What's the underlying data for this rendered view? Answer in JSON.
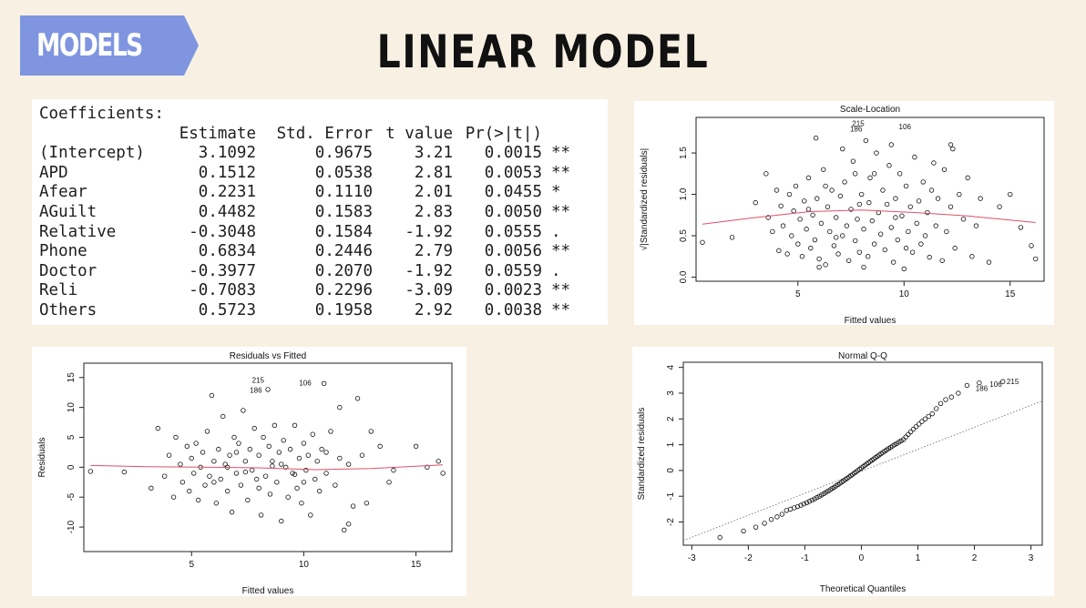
{
  "header": {
    "tag_label": "MODELS",
    "title": "LINEAR MODEL"
  },
  "coefficients": {
    "caption": "Coefficients:",
    "columns": [
      "",
      "Estimate",
      "Std. Error",
      "t value",
      "Pr(>|t|)",
      ""
    ],
    "rows": [
      [
        "(Intercept)",
        "3.1092",
        "0.9675",
        "3.21",
        "0.0015",
        "**"
      ],
      [
        "APD",
        "0.1512",
        "0.0538",
        "2.81",
        "0.0053",
        "**"
      ],
      [
        "Afear",
        "0.2231",
        "0.1110",
        "2.01",
        "0.0455",
        "*"
      ],
      [
        "AGuilt",
        "0.4482",
        "0.1583",
        "2.83",
        "0.0050",
        "**"
      ],
      [
        "Relative",
        "-0.3048",
        "0.1584",
        "-1.92",
        "0.0555",
        "."
      ],
      [
        "Phone",
        "0.6834",
        "0.2446",
        "2.79",
        "0.0056",
        "**"
      ],
      [
        "Doctor",
        "-0.3977",
        "0.2070",
        "-1.92",
        "0.0559",
        "."
      ],
      [
        "Reli",
        "-0.7083",
        "0.2296",
        "-3.09",
        "0.0023",
        "**"
      ],
      [
        "Others",
        "0.5723",
        "0.1958",
        "2.92",
        "0.0038",
        "**"
      ]
    ]
  },
  "chart_data": [
    {
      "id": "scale_location",
      "type": "scatter",
      "title": "Scale-Location",
      "xlabel": "Fitted values",
      "ylabel": "√|Standardized residuals|",
      "xlim": [
        0.2,
        16.6
      ],
      "ylim": [
        -0.05,
        1.93
      ],
      "xticks": [
        5,
        10,
        15
      ],
      "yticks": [
        0.0,
        0.5,
        1.0,
        1.5
      ],
      "smooth": {
        "x": [
          0.5,
          3,
          5.5,
          8,
          10.5,
          13,
          16.2
        ],
        "y": [
          0.64,
          0.72,
          0.79,
          0.81,
          0.78,
          0.74,
          0.66
        ],
        "color": "#e0506a"
      },
      "labels": [
        {
          "text": "215",
          "x": 8.3,
          "y": 1.86
        },
        {
          "text": "186",
          "x": 8.2,
          "y": 1.79
        },
        {
          "text": "106",
          "x": 10.5,
          "y": 1.82
        }
      ],
      "points": [
        [
          0.5,
          0.42
        ],
        [
          1.9,
          0.48
        ],
        [
          3.0,
          0.9
        ],
        [
          3.5,
          1.25
        ],
        [
          3.6,
          0.72
        ],
        [
          3.8,
          0.55
        ],
        [
          4.0,
          1.05
        ],
        [
          4.1,
          0.32
        ],
        [
          4.2,
          0.86
        ],
        [
          4.3,
          0.62
        ],
        [
          4.5,
          0.28
        ],
        [
          4.6,
          1.0
        ],
        [
          4.7,
          0.5
        ],
        [
          4.8,
          0.8
        ],
        [
          4.9,
          1.1
        ],
        [
          5.0,
          0.4
        ],
        [
          5.1,
          0.7
        ],
        [
          5.2,
          0.25
        ],
        [
          5.3,
          0.92
        ],
        [
          5.4,
          0.58
        ],
        [
          5.5,
          1.2
        ],
        [
          5.6,
          0.35
        ],
        [
          5.7,
          0.75
        ],
        [
          5.8,
          0.45
        ],
        [
          5.85,
          1.68
        ],
        [
          5.9,
          0.95
        ],
        [
          6.0,
          0.22
        ],
        [
          6.1,
          0.65
        ],
        [
          6.2,
          1.3
        ],
        [
          6.3,
          0.15
        ],
        [
          6.4,
          0.85
        ],
        [
          6.5,
          0.55
        ],
        [
          6.6,
          1.05
        ],
        [
          6.7,
          0.38
        ],
        [
          6.8,
          0.72
        ],
        [
          6.9,
          0.28
        ],
        [
          7.0,
          0.98
        ],
        [
          7.1,
          0.5
        ],
        [
          7.2,
          1.15
        ],
        [
          7.3,
          0.62
        ],
        [
          7.4,
          0.2
        ],
        [
          7.5,
          0.82
        ],
        [
          7.6,
          1.4
        ],
        [
          7.7,
          0.44
        ],
        [
          7.8,
          0.7
        ],
        [
          7.9,
          0.3
        ],
        [
          8.0,
          1.0
        ],
        [
          8.1,
          0.58
        ],
        [
          8.2,
          1.65
        ],
        [
          8.3,
          0.25
        ],
        [
          8.35,
          0.9
        ],
        [
          8.4,
          1.2
        ],
        [
          8.5,
          0.68
        ],
        [
          8.6,
          0.4
        ],
        [
          8.7,
          1.5
        ],
        [
          8.8,
          0.78
        ],
        [
          8.9,
          0.52
        ],
        [
          9.0,
          1.05
        ],
        [
          9.1,
          0.33
        ],
        [
          9.2,
          0.88
        ],
        [
          9.3,
          1.35
        ],
        [
          9.4,
          0.6
        ],
        [
          9.5,
          0.18
        ],
        [
          9.6,
          0.95
        ],
        [
          9.7,
          0.45
        ],
        [
          9.8,
          1.25
        ],
        [
          9.9,
          0.74
        ],
        [
          10.0,
          0.1
        ],
        [
          10.1,
          1.1
        ],
        [
          10.2,
          0.55
        ],
        [
          10.3,
          0.85
        ],
        [
          10.4,
          0.3
        ],
        [
          10.5,
          1.45
        ],
        [
          10.6,
          0.65
        ],
        [
          10.7,
          0.92
        ],
        [
          10.8,
          0.4
        ],
        [
          10.9,
          1.15
        ],
        [
          11.0,
          0.5
        ],
        [
          11.1,
          0.78
        ],
        [
          11.2,
          0.24
        ],
        [
          11.3,
          1.05
        ],
        [
          11.5,
          0.62
        ],
        [
          11.6,
          0.95
        ],
        [
          11.8,
          0.2
        ],
        [
          11.9,
          1.3
        ],
        [
          12.0,
          0.55
        ],
        [
          12.2,
          0.85
        ],
        [
          12.3,
          1.55
        ],
        [
          12.4,
          0.35
        ],
        [
          12.6,
          1.0
        ],
        [
          12.8,
          0.7
        ],
        [
          13.0,
          1.2
        ],
        [
          13.2,
          0.25
        ],
        [
          13.4,
          0.62
        ],
        [
          13.6,
          0.95
        ],
        [
          14.0,
          0.18
        ],
        [
          14.5,
          0.85
        ],
        [
          15.0,
          1.0
        ],
        [
          15.5,
          0.6
        ],
        [
          16.0,
          0.38
        ],
        [
          16.2,
          0.22
        ],
        [
          5.5,
          0.82
        ],
        [
          6.3,
          1.1
        ],
        [
          7.1,
          1.55
        ],
        [
          7.7,
          1.25
        ],
        [
          8.6,
          1.25
        ],
        [
          9.4,
          1.6
        ],
        [
          10.1,
          0.35
        ],
        [
          11.4,
          1.38
        ],
        [
          12.2,
          1.6
        ],
        [
          6.8,
          0.48
        ],
        [
          7.9,
          0.88
        ],
        [
          9.6,
          0.72
        ],
        [
          8.1,
          0.12
        ],
        [
          6.0,
          0.12
        ]
      ]
    },
    {
      "id": "residuals_vs_fitted",
      "type": "scatter",
      "title": "Residuals vs Fitted",
      "xlabel": "Fitted values",
      "ylabel": "Residuals",
      "xlim": [
        0.2,
        16.6
      ],
      "ylim": [
        -14.1,
        17.4
      ],
      "xticks": [
        5,
        10,
        15
      ],
      "yticks": [
        -10,
        -5,
        0,
        5,
        10,
        15
      ],
      "smooth": {
        "x": [
          0.5,
          3,
          5.5,
          8,
          10.5,
          13,
          16.2
        ],
        "y": [
          0.3,
          0.1,
          0.0,
          -0.1,
          -0.4,
          -0.2,
          0.4
        ],
        "color": "#e0506a"
      },
      "labels": [
        {
          "text": "215",
          "x": 8.4,
          "y": 14.6
        },
        {
          "text": "186",
          "x": 8.3,
          "y": 12.9
        },
        {
          "text": "106",
          "x": 10.5,
          "y": 14.1
        }
      ],
      "points": [
        [
          0.5,
          -0.7
        ],
        [
          2.0,
          -0.8
        ],
        [
          3.2,
          -3.5
        ],
        [
          3.5,
          6.5
        ],
        [
          3.8,
          -1.5
        ],
        [
          4.0,
          2.0
        ],
        [
          4.2,
          -5.0
        ],
        [
          4.3,
          5.0
        ],
        [
          4.5,
          0.5
        ],
        [
          4.6,
          -2.5
        ],
        [
          4.8,
          3.5
        ],
        [
          4.9,
          -4.0
        ],
        [
          5.0,
          1.5
        ],
        [
          5.1,
          -1.0
        ],
        [
          5.2,
          4.0
        ],
        [
          5.3,
          -5.5
        ],
        [
          5.4,
          0.0
        ],
        [
          5.5,
          2.5
        ],
        [
          5.6,
          -3.0
        ],
        [
          5.7,
          6.0
        ],
        [
          5.8,
          -1.5
        ],
        [
          5.9,
          12.0
        ],
        [
          6.0,
          1.0
        ],
        [
          6.1,
          -6.0
        ],
        [
          6.2,
          3.0
        ],
        [
          6.3,
          -2.0
        ],
        [
          6.4,
          8.5
        ],
        [
          6.5,
          0.5
        ],
        [
          6.6,
          -4.0
        ],
        [
          6.7,
          2.0
        ],
        [
          6.8,
          -7.5
        ],
        [
          6.9,
          5.0
        ],
        [
          7.0,
          -1.0
        ],
        [
          7.1,
          4.0
        ],
        [
          7.2,
          -3.0
        ],
        [
          7.3,
          9.5
        ],
        [
          7.4,
          1.0
        ],
        [
          7.5,
          -5.5
        ],
        [
          7.6,
          3.0
        ],
        [
          7.7,
          -0.5
        ],
        [
          7.8,
          6.5
        ],
        [
          7.9,
          -2.0
        ],
        [
          8.0,
          2.0
        ],
        [
          8.1,
          -8.0
        ],
        [
          8.2,
          5.0
        ],
        [
          8.3,
          -1.5
        ],
        [
          8.4,
          13.0
        ],
        [
          8.45,
          3.5
        ],
        [
          8.5,
          -4.5
        ],
        [
          8.6,
          1.0
        ],
        [
          8.7,
          7.0
        ],
        [
          8.8,
          -2.5
        ],
        [
          8.9,
          2.5
        ],
        [
          9.0,
          -9.0
        ],
        [
          9.1,
          4.5
        ],
        [
          9.2,
          0.0
        ],
        [
          9.3,
          -5.0
        ],
        [
          9.4,
          3.0
        ],
        [
          9.5,
          -1.0
        ],
        [
          9.6,
          7.0
        ],
        [
          9.7,
          -3.5
        ],
        [
          9.8,
          1.5
        ],
        [
          9.9,
          -6.0
        ],
        [
          10.0,
          4.0
        ],
        [
          10.1,
          -0.5
        ],
        [
          10.2,
          2.0
        ],
        [
          10.3,
          -8.0
        ],
        [
          10.4,
          5.5
        ],
        [
          10.5,
          -2.0
        ],
        [
          10.6,
          1.0
        ],
        [
          10.7,
          -4.0
        ],
        [
          10.8,
          3.0
        ],
        [
          10.9,
          14.0
        ],
        [
          11.0,
          -1.0
        ],
        [
          11.2,
          6.0
        ],
        [
          11.4,
          -3.0
        ],
        [
          11.6,
          1.5
        ],
        [
          11.8,
          -10.5
        ],
        [
          12.0,
          0.5
        ],
        [
          12.2,
          -6.5
        ],
        [
          12.4,
          11.5
        ],
        [
          12.6,
          2.0
        ],
        [
          12.8,
          -6.0
        ],
        [
          13.0,
          6.0
        ],
        [
          13.4,
          3.5
        ],
        [
          13.8,
          -2.5
        ],
        [
          14.0,
          -0.5
        ],
        [
          15.0,
          3.5
        ],
        [
          15.5,
          0.0
        ],
        [
          16.0,
          1.0
        ],
        [
          16.2,
          -1.0
        ],
        [
          6.0,
          -2.5
        ],
        [
          7.0,
          2.5
        ],
        [
          8.0,
          -3.5
        ],
        [
          9.0,
          0.5
        ],
        [
          10.0,
          -2.5
        ],
        [
          11.0,
          2.5
        ],
        [
          7.4,
          -0.8
        ],
        [
          8.6,
          0.2
        ],
        [
          9.6,
          -1.2
        ],
        [
          6.6,
          0.0
        ],
        [
          11.6,
          10.0
        ],
        [
          12.0,
          -9.5
        ]
      ]
    },
    {
      "id": "normal_qq",
      "type": "scatter",
      "title": "Normal Q-Q",
      "xlabel": "Theoretical Quantiles",
      "ylabel": "Standardized residuals",
      "xlim": [
        -3.15,
        3.2
      ],
      "ylim": [
        -2.9,
        4.2
      ],
      "xticks": [
        -3,
        -2,
        -1,
        0,
        1,
        2,
        3
      ],
      "yticks": [
        -2,
        -1,
        0,
        1,
        2,
        3,
        4
      ],
      "reference_line": {
        "x": [
          -3.15,
          3.2
        ],
        "y": [
          -2.72,
          2.7
        ]
      },
      "labels": [
        {
          "text": "186",
          "x": 2.3,
          "y": 3.2
        },
        {
          "text": "106",
          "x": 2.55,
          "y": 3.35
        },
        {
          "text": "215",
          "x": 2.85,
          "y": 3.45
        }
      ],
      "qq_y_quantiles": [
        -2.6,
        -2.35,
        -2.2,
        -2.05,
        -1.9,
        -1.8,
        -1.7,
        -1.55,
        -1.5,
        -1.45,
        -1.4,
        -1.35,
        -1.3,
        -1.25,
        -1.2,
        -1.15,
        -1.1,
        -1.05,
        -1.0,
        -0.95,
        -0.9,
        -0.85,
        -0.8,
        -0.75,
        -0.7,
        -0.65,
        -0.6,
        -0.55,
        -0.5,
        -0.45,
        -0.4,
        -0.35,
        -0.3,
        -0.25,
        -0.2,
        -0.15,
        -0.1,
        -0.05,
        0.0,
        0.05,
        0.1,
        0.15,
        0.2,
        0.25,
        0.3,
        0.35,
        0.4,
        0.45,
        0.5,
        0.55,
        0.6,
        0.65,
        0.7,
        0.75,
        0.8,
        0.85,
        0.9,
        0.95,
        1.0,
        1.05,
        1.1,
        1.15,
        1.2,
        1.3,
        1.4,
        1.5,
        1.6,
        1.7,
        1.8,
        1.9,
        2.0,
        2.1,
        2.2,
        2.4,
        2.6,
        2.75,
        2.85,
        3.0,
        3.3,
        3.4,
        3.45
      ]
    }
  ]
}
